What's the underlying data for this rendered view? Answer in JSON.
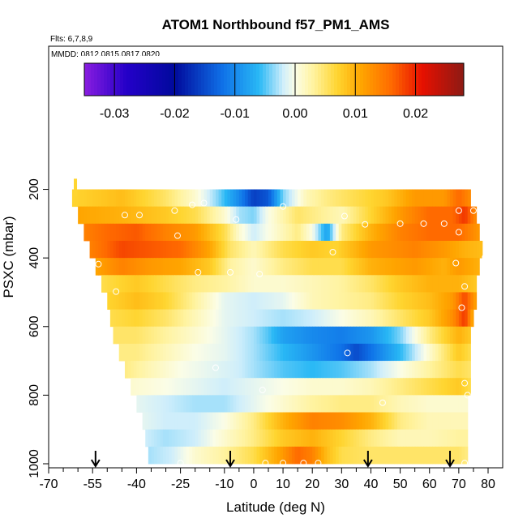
{
  "chart_data": {
    "type": "heatmap",
    "title": "ATOM1 Northbound f57_PM1_AMS",
    "flights_note": "Flts: 6,7,8,9",
    "dates_note": "MMDD: 0812,0815,0817,0820",
    "xlabel": "Latitude (deg N)",
    "ylabel": "PSXC (mbar)",
    "xlim": [
      -70,
      80
    ],
    "ylim": [
      1000,
      100
    ],
    "x_ticks": [
      -70,
      -55,
      -40,
      -25,
      -10,
      0,
      10,
      20,
      30,
      40,
      50,
      60,
      70,
      80
    ],
    "x_tick_labels": [
      "-70",
      "-55",
      "-40",
      "-25",
      "-10",
      "0",
      "10",
      "20",
      "30",
      "40",
      "50",
      "60",
      "70",
      "80"
    ],
    "x_minor_ticks": [
      -65,
      -60,
      -50,
      -45,
      -35,
      -30,
      -20,
      -15,
      -5,
      5,
      15,
      25,
      35,
      45,
      55,
      65,
      75
    ],
    "y_ticks": [
      200,
      400,
      600,
      800,
      1000
    ],
    "y_tick_labels": [
      "200",
      "400",
      "600",
      "800",
      "1000"
    ],
    "colorbar": {
      "range": [
        -0.035,
        0.028
      ],
      "ticks": [
        -0.03,
        -0.02,
        -0.01,
        0.0,
        0.01,
        0.02
      ],
      "tick_labels": [
        "-0.03",
        "-0.02",
        "-0.01",
        "0.00",
        "0.01",
        "0.02"
      ],
      "stops": [
        {
          "v": -0.035,
          "c": "#8a1de0"
        },
        {
          "v": -0.028,
          "c": "#2400c8"
        },
        {
          "v": -0.02,
          "c": "#000a9c"
        },
        {
          "v": -0.012,
          "c": "#0f72e8"
        },
        {
          "v": -0.006,
          "c": "#29b8f5"
        },
        {
          "v": -0.002,
          "c": "#cfeefb"
        },
        {
          "v": 0.0,
          "c": "#fbfde6"
        },
        {
          "v": 0.003,
          "c": "#fff3a0"
        },
        {
          "v": 0.007,
          "c": "#ffd530"
        },
        {
          "v": 0.011,
          "c": "#ffa500"
        },
        {
          "v": 0.016,
          "c": "#ff6a00"
        },
        {
          "v": 0.021,
          "c": "#e81000"
        },
        {
          "v": 0.028,
          "c": "#8c1a14"
        }
      ]
    },
    "pressure_levels": [
      225,
      275,
      325,
      375,
      425,
      475,
      525,
      575,
      625,
      675,
      725,
      775,
      825,
      875,
      925,
      975
    ],
    "lat_extent": [
      [
        -62,
        74
      ],
      [
        -60,
        76
      ],
      [
        -58,
        77
      ],
      [
        -56,
        78
      ],
      [
        -54,
        77
      ],
      [
        -52,
        76
      ],
      [
        -50,
        76
      ],
      [
        -49,
        75
      ],
      [
        -48,
        74
      ],
      [
        -46,
        74
      ],
      [
        -44,
        74
      ],
      [
        -42,
        74
      ],
      [
        -40,
        73
      ],
      [
        -38,
        73
      ],
      [
        -37,
        73
      ],
      [
        -36,
        73
      ]
    ],
    "anomaly_field": [
      {
        "lat": [
          -62,
          -45,
          -30,
          -20,
          -12,
          -5,
          0,
          5,
          10,
          18,
          25,
          30,
          45,
          55,
          65,
          70,
          74
        ],
        "val": [
          0.007,
          0.009,
          0.005,
          0.001,
          -0.004,
          -0.01,
          -0.016,
          -0.014,
          -0.004,
          0.002,
          0.004,
          0.005,
          0.008,
          0.012,
          0.012,
          0.016,
          0.013
        ]
      },
      {
        "lat": [
          -60,
          -45,
          -30,
          -20,
          -10,
          -5,
          0,
          5,
          15,
          20,
          30,
          40,
          50,
          60,
          68,
          72,
          76
        ],
        "val": [
          0.011,
          0.01,
          0.008,
          0.006,
          0.001,
          -0.003,
          -0.004,
          0.0,
          0.005,
          0.004,
          0.002,
          0.007,
          0.012,
          0.016,
          0.016,
          0.019,
          0.013
        ]
      },
      {
        "lat": [
          -58,
          -50,
          -40,
          -30,
          -20,
          -10,
          -5,
          0,
          5,
          15,
          20,
          25,
          30,
          40,
          50,
          60,
          70,
          77
        ],
        "val": [
          0.014,
          0.016,
          0.017,
          0.014,
          0.012,
          0.006,
          0.001,
          -0.002,
          0.0,
          0.004,
          0.0,
          -0.008,
          0.004,
          0.01,
          0.014,
          0.016,
          0.016,
          0.012
        ]
      },
      {
        "lat": [
          -56,
          -45,
          -35,
          -25,
          -15,
          -8,
          0,
          10,
          20,
          28,
          40,
          55,
          65,
          72,
          78
        ],
        "val": [
          0.014,
          0.018,
          0.017,
          0.016,
          0.011,
          0.005,
          0.002,
          0.006,
          0.008,
          0.007,
          0.012,
          0.014,
          0.012,
          0.01,
          0.009
        ]
      },
      {
        "lat": [
          -54,
          -45,
          -35,
          -25,
          -15,
          -8,
          0,
          10,
          20,
          30,
          40,
          55,
          65,
          70,
          77
        ],
        "val": [
          0.011,
          0.014,
          0.012,
          0.011,
          0.008,
          0.003,
          0.001,
          0.004,
          0.006,
          0.006,
          0.01,
          0.012,
          0.01,
          0.012,
          0.01
        ]
      },
      {
        "lat": [
          -52,
          -40,
          -30,
          -20,
          -10,
          0,
          10,
          20,
          30,
          40,
          50,
          60,
          70,
          76
        ],
        "val": [
          0.006,
          0.008,
          0.006,
          0.004,
          0.003,
          0.001,
          0.001,
          0.002,
          0.003,
          0.005,
          0.008,
          0.01,
          0.01,
          0.008
        ]
      },
      {
        "lat": [
          -50,
          -40,
          -30,
          -20,
          -10,
          0,
          10,
          20,
          30,
          40,
          50,
          60,
          68,
          72,
          76
        ],
        "val": [
          0.007,
          0.009,
          0.007,
          0.003,
          -0.001,
          -0.002,
          -0.001,
          0.002,
          0.003,
          0.004,
          0.007,
          0.009,
          0.012,
          0.018,
          0.011
        ]
      },
      {
        "lat": [
          -49,
          -40,
          -30,
          -20,
          -10,
          0,
          10,
          20,
          30,
          40,
          50,
          60,
          68,
          72,
          75
        ],
        "val": [
          0.006,
          0.007,
          0.005,
          0.002,
          -0.001,
          -0.002,
          -0.003,
          -0.002,
          0.0,
          0.002,
          0.005,
          0.008,
          0.013,
          0.019,
          0.01
        ]
      },
      {
        "lat": [
          -48,
          -40,
          -30,
          -20,
          -10,
          0,
          5,
          10,
          20,
          30,
          40,
          50,
          60,
          70,
          74
        ],
        "val": [
          0.005,
          0.005,
          0.003,
          0.001,
          -0.001,
          -0.003,
          -0.005,
          -0.008,
          -0.01,
          -0.011,
          -0.009,
          -0.004,
          0.004,
          0.01,
          0.008
        ]
      },
      {
        "lat": [
          -46,
          -40,
          -30,
          -20,
          -10,
          0,
          10,
          20,
          30,
          35,
          40,
          50,
          60,
          70,
          74
        ],
        "val": [
          0.004,
          0.004,
          0.002,
          0.0,
          -0.001,
          -0.003,
          -0.006,
          -0.009,
          -0.012,
          -0.015,
          -0.012,
          -0.006,
          0.001,
          0.008,
          0.006
        ]
      },
      {
        "lat": [
          -44,
          -35,
          -25,
          -15,
          -5,
          0,
          10,
          20,
          30,
          40,
          50,
          60,
          70,
          74
        ],
        "val": [
          0.004,
          0.002,
          0.0,
          -0.001,
          -0.002,
          -0.003,
          -0.005,
          -0.006,
          -0.005,
          -0.003,
          0.0,
          0.003,
          0.006,
          0.005
        ]
      },
      {
        "lat": [
          -42,
          -30,
          -20,
          -10,
          0,
          10,
          20,
          30,
          40,
          50,
          60,
          70,
          74
        ],
        "val": [
          0.001,
          0.0,
          -0.001,
          -0.002,
          -0.001,
          0.0,
          0.001,
          0.001,
          0.002,
          0.004,
          0.006,
          0.008,
          0.006
        ]
      },
      {
        "lat": [
          -40,
          -30,
          -20,
          -10,
          0,
          10,
          20,
          30,
          40,
          50,
          60,
          70,
          73
        ],
        "val": [
          -0.001,
          -0.002,
          -0.003,
          -0.003,
          -0.001,
          0.001,
          0.003,
          0.004,
          0.004,
          0.002,
          0.001,
          0.001,
          0.001
        ]
      },
      {
        "lat": [
          -38,
          -30,
          -20,
          -10,
          0,
          10,
          20,
          30,
          40,
          50,
          60,
          70,
          73
        ],
        "val": [
          -0.001,
          -0.002,
          -0.002,
          0.0,
          0.004,
          0.01,
          0.014,
          0.013,
          0.01,
          0.004,
          0.002,
          0.002,
          0.002
        ]
      },
      {
        "lat": [
          -37,
          -30,
          -20,
          -10,
          0,
          10,
          20,
          30,
          40,
          50,
          60,
          70,
          73
        ],
        "val": [
          -0.002,
          -0.003,
          -0.002,
          0.001,
          0.004,
          0.008,
          0.01,
          0.007,
          0.004,
          0.002,
          0.002,
          0.003,
          0.003
        ]
      },
      {
        "lat": [
          -36,
          -28,
          -20,
          -10,
          0,
          10,
          15,
          20,
          25,
          30,
          40,
          50,
          60,
          70,
          73
        ],
        "val": [
          -0.003,
          -0.002,
          0.001,
          0.003,
          0.006,
          0.012,
          0.016,
          0.014,
          0.009,
          0.006,
          0.005,
          0.005,
          0.005,
          0.005,
          0.004
        ]
      }
    ],
    "isolated_value": {
      "lat": -61,
      "p": 195,
      "val": 0.007
    },
    "observation_markers": [
      {
        "lat": -44,
        "p": 275
      },
      {
        "lat": -39,
        "p": 275
      },
      {
        "lat": -27,
        "p": 262
      },
      {
        "lat": -21,
        "p": 245
      },
      {
        "lat": -17,
        "p": 240
      },
      {
        "lat": -6,
        "p": 288
      },
      {
        "lat": 10,
        "p": 250
      },
      {
        "lat": 31,
        "p": 278
      },
      {
        "lat": 38,
        "p": 302
      },
      {
        "lat": 50,
        "p": 300
      },
      {
        "lat": 58,
        "p": 300
      },
      {
        "lat": 65,
        "p": 300
      },
      {
        "lat": 70,
        "p": 262
      },
      {
        "lat": 75,
        "p": 262
      },
      {
        "lat": 70,
        "p": 325
      },
      {
        "lat": -26,
        "p": 335
      },
      {
        "lat": 27,
        "p": 383
      },
      {
        "lat": 79,
        "p": 398
      },
      {
        "lat": -53,
        "p": 418
      },
      {
        "lat": 69,
        "p": 415
      },
      {
        "lat": -19,
        "p": 442
      },
      {
        "lat": -8,
        "p": 442
      },
      {
        "lat": 2,
        "p": 447
      },
      {
        "lat": 72,
        "p": 483
      },
      {
        "lat": -47,
        "p": 498
      },
      {
        "lat": 71,
        "p": 545
      },
      {
        "lat": 32,
        "p": 677
      },
      {
        "lat": -13,
        "p": 720
      },
      {
        "lat": 72,
        "p": 765
      },
      {
        "lat": 3,
        "p": 785
      },
      {
        "lat": 44,
        "p": 822
      },
      {
        "lat": 73,
        "p": 800
      },
      {
        "lat": -25,
        "p": 998
      },
      {
        "lat": 4,
        "p": 998
      },
      {
        "lat": 10,
        "p": 998
      },
      {
        "lat": 17,
        "p": 998
      },
      {
        "lat": 22,
        "p": 998
      },
      {
        "lat": 72,
        "p": 998
      }
    ],
    "arrow_markers_lat": [
      -54,
      -8,
      39,
      67
    ]
  }
}
